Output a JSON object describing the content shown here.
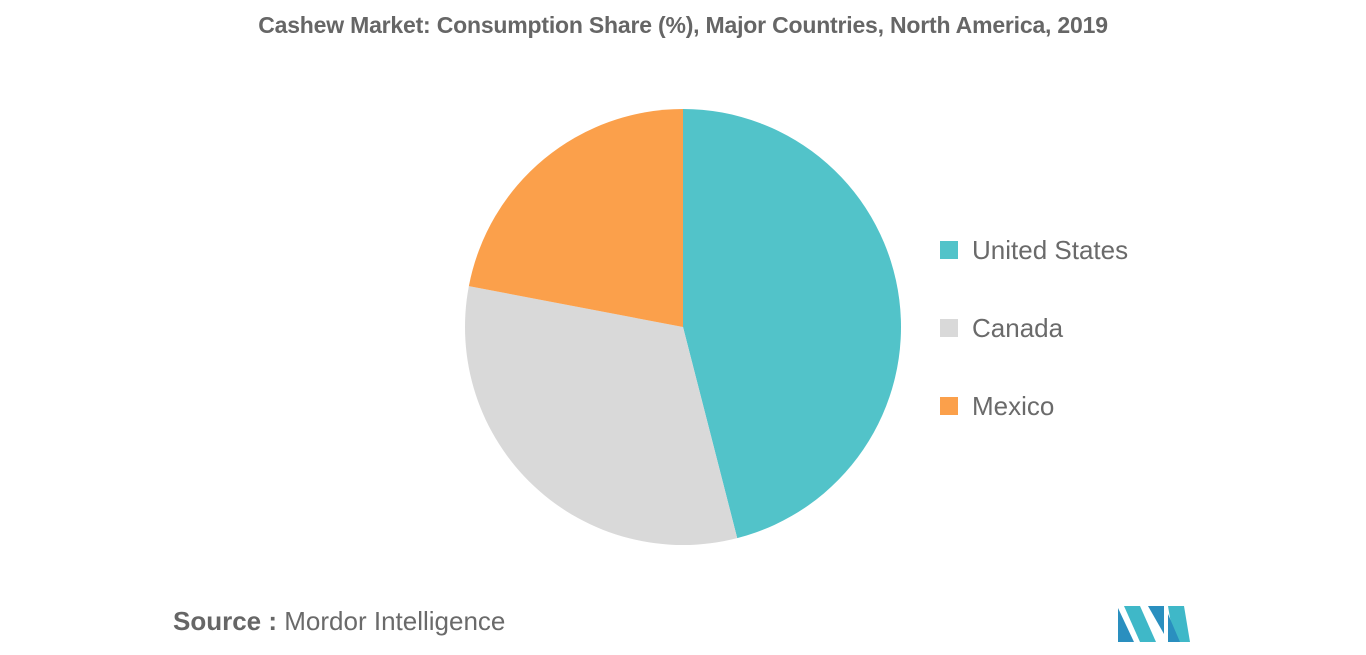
{
  "chart_data": {
    "type": "pie",
    "title": "Cashew Market: Consumption Share (%), Major Countries, North America, 2019",
    "categories": [
      "United States",
      "Canada",
      "Mexico"
    ],
    "values": [
      46,
      32,
      22
    ],
    "colors": [
      "#52c3c9",
      "#d9d9d9",
      "#fba04b"
    ],
    "legend_position": "right",
    "start_angle_deg": 0,
    "direction": "clockwise"
  },
  "source": {
    "prefix": "Source :",
    "text": "Mordor Intelligence"
  },
  "logo": {
    "icon": "mordor-intelligence-logo",
    "colors": [
      "#2a8fbf",
      "#3fb8c8"
    ]
  }
}
